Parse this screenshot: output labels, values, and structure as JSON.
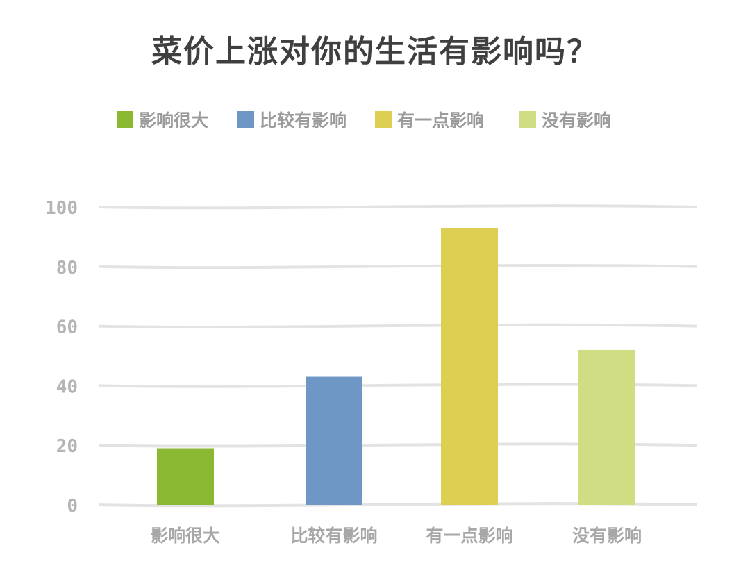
{
  "chart_data": {
    "type": "bar",
    "title": "菜价上涨对你的生活有影响吗？",
    "categories": [
      "影响很大",
      "比较有影响",
      "有一点影响",
      "没有影响"
    ],
    "values": [
      19,
      43,
      93,
      52
    ],
    "colors": [
      "#8bb832",
      "#6f97c6",
      "#dccf52",
      "#d1dd83"
    ],
    "ylim": [
      0,
      100
    ],
    "yticks": [
      "0",
      "20",
      "40",
      "60",
      "80",
      "100"
    ],
    "grid": true,
    "legend_position": "top",
    "legend": [
      "影响很大",
      "比较有影响",
      "有一点影响",
      "没有影响"
    ]
  }
}
